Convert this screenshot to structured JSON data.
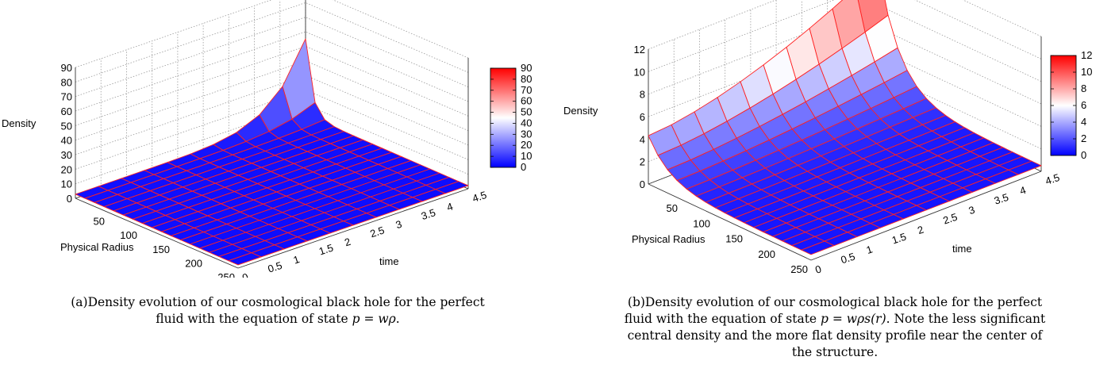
{
  "figure": {
    "panels": [
      {
        "tag": "(a)",
        "caption_lines": [
          {
            "text": "Density evolution of our cosmological black hole for the perfect"
          },
          {
            "text": "fluid with the equation of state ",
            "math": "p = wρ",
            "tail": "."
          }
        ]
      },
      {
        "tag": "(b)",
        "caption_lines": [
          {
            "text": "Density evolution of our cosmological black hole for the perfect"
          },
          {
            "text": "fluid with the equation of state ",
            "math": "p = wρs(r)",
            "tail": ". Note the less significant"
          },
          {
            "text": "central density and the more flat density profile near the center of"
          },
          {
            "text": "the structure."
          }
        ]
      }
    ]
  },
  "chart_data": [
    {
      "type": "surface3d",
      "panel": "a",
      "zlabel": "Density",
      "xlabel": "Physical Radius",
      "ylabel": "time",
      "x_ticks": [
        "50",
        "100",
        "150",
        "200",
        "250"
      ],
      "y_ticks": [
        "0",
        "0.5",
        "1",
        "1.5",
        "2",
        "2.5",
        "3",
        "3.5",
        "4",
        "4.5"
      ],
      "z_ticks": [
        "0",
        "10",
        "20",
        "30",
        "40",
        "50",
        "60",
        "70",
        "80",
        "90"
      ],
      "colorbar_ticks": [
        "0",
        "10",
        "20",
        "30",
        "40",
        "50",
        "60",
        "70",
        "80",
        "90"
      ],
      "xlim": [
        0,
        250
      ],
      "ylim": [
        0,
        4.5
      ],
      "zlim": [
        0,
        90
      ],
      "colorbar_range": [
        0,
        90
      ],
      "colors": {
        "low": "#0000ff",
        "mid": "#ffffff",
        "high": "#ff0000",
        "mesh": "#ff2020"
      },
      "peak": {
        "radius": 0,
        "time": 4.5,
        "density": 90
      },
      "grid": true
    },
    {
      "type": "surface3d",
      "panel": "b",
      "zlabel": "Density",
      "xlabel": "Physical Radius",
      "ylabel": "time",
      "x_ticks": [
        "50",
        "100",
        "150",
        "200",
        "250"
      ],
      "y_ticks": [
        "0",
        "0.5",
        "1",
        "1.5",
        "2",
        "2.5",
        "3",
        "3.5",
        "4",
        "4.5"
      ],
      "z_ticks": [
        "0",
        "2",
        "4",
        "6",
        "8",
        "10",
        "12"
      ],
      "colorbar_ticks": [
        "0",
        "2",
        "4",
        "6",
        "8",
        "10",
        "12"
      ],
      "xlim": [
        0,
        250
      ],
      "ylim": [
        0,
        4.5
      ],
      "zlim": [
        0,
        12
      ],
      "colorbar_range": [
        0,
        12
      ],
      "colors": {
        "low": "#0000ff",
        "mid": "#ffffff",
        "high": "#ff0000",
        "mesh": "#ff2020"
      },
      "edge_values": {
        "time_0_center": 4.3,
        "time_max_center": 11.4
      },
      "grid": true
    }
  ]
}
